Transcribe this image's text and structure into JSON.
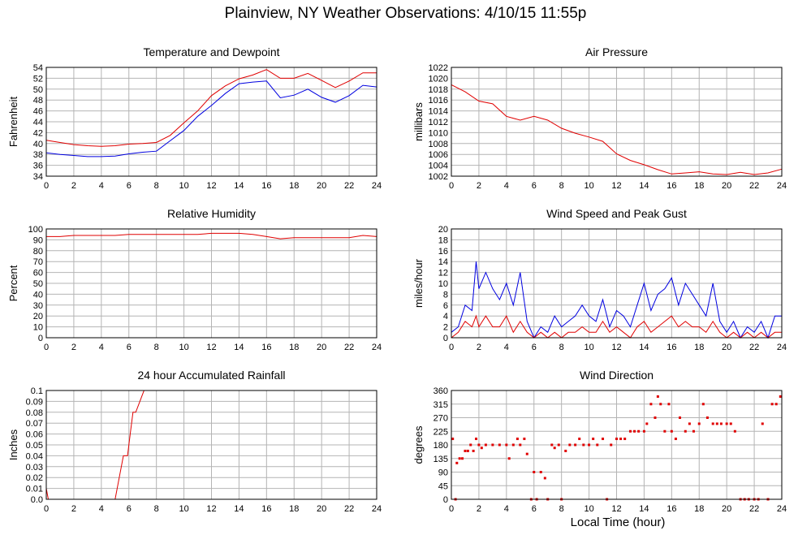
{
  "title": "Plainview, NY Weather Observations: 4/10/15 11:55p",
  "x_axis_label": "Local Time (hour)",
  "colors": {
    "red": "#e00000",
    "blue": "#0000e0",
    "grid": "#b4b4b4",
    "axis": "#000000"
  },
  "chart_data": [
    {
      "id": "temp",
      "type": "line",
      "title": "Temperature and Dewpoint",
      "ylabel": "Fahrenheit",
      "xlim": [
        0,
        24
      ],
      "ylim": [
        34,
        54
      ],
      "yticks": [
        34,
        36,
        38,
        40,
        42,
        44,
        46,
        48,
        50,
        52,
        54
      ],
      "xticks": [
        0,
        2,
        4,
        6,
        8,
        10,
        12,
        14,
        16,
        18,
        20,
        22,
        24
      ],
      "grid": true,
      "series": [
        {
          "color": "red",
          "x": [
            0,
            1,
            2,
            3,
            4,
            5,
            6,
            7,
            8,
            9,
            10,
            11,
            12,
            13,
            14,
            15,
            16,
            17,
            18,
            19,
            20,
            21,
            22,
            23,
            24
          ],
          "y": [
            40.6,
            40.2,
            39.8,
            39.6,
            39.5,
            39.6,
            39.9,
            40.0,
            40.2,
            41.5,
            43.8,
            46.0,
            48.8,
            50.6,
            51.9,
            52.6,
            53.6,
            52.0,
            52.0,
            52.9,
            51.6,
            50.3,
            51.5,
            53.0,
            53.0
          ]
        },
        {
          "color": "blue",
          "x": [
            0,
            1,
            2,
            3,
            4,
            5,
            6,
            7,
            8,
            9,
            10,
            11,
            12,
            13,
            14,
            15,
            16,
            17,
            18,
            19,
            20,
            21,
            22,
            23,
            24
          ],
          "y": [
            38.3,
            38.0,
            37.8,
            37.6,
            37.6,
            37.7,
            38.1,
            38.4,
            38.6,
            40.5,
            42.4,
            45.0,
            47.0,
            49.2,
            51.0,
            51.3,
            51.5,
            48.4,
            48.9,
            50.0,
            48.5,
            47.6,
            48.8,
            50.7,
            50.4
          ]
        }
      ]
    },
    {
      "id": "pressure",
      "type": "line",
      "title": "Air Pressure",
      "ylabel": "millibars",
      "xlim": [
        0,
        24
      ],
      "ylim": [
        1002,
        1022
      ],
      "yticks": [
        1002,
        1004,
        1006,
        1008,
        1010,
        1012,
        1014,
        1016,
        1018,
        1020,
        1022
      ],
      "xticks": [
        0,
        2,
        4,
        6,
        8,
        10,
        12,
        14,
        16,
        18,
        20,
        22,
        24
      ],
      "grid": true,
      "series": [
        {
          "color": "red",
          "x": [
            0,
            1,
            2,
            3,
            4,
            5,
            6,
            7,
            8,
            9,
            10,
            11,
            12,
            13,
            14,
            15,
            16,
            17,
            18,
            19,
            20,
            21,
            22,
            23,
            24
          ],
          "y": [
            1018.8,
            1017.5,
            1015.8,
            1015.3,
            1013.0,
            1012.3,
            1013.0,
            1012.3,
            1010.8,
            1009.9,
            1009.2,
            1008.4,
            1006.1,
            1004.9,
            1004.1,
            1003.2,
            1002.4,
            1002.6,
            1002.8,
            1002.4,
            1002.3,
            1002.7,
            1002.3,
            1002.6,
            1003.3
          ]
        }
      ]
    },
    {
      "id": "humidity",
      "type": "line",
      "title": "Relative Humidity",
      "ylabel": "Percent",
      "xlim": [
        0,
        24
      ],
      "ylim": [
        0,
        100
      ],
      "yticks": [
        0,
        10,
        20,
        30,
        40,
        50,
        60,
        70,
        80,
        90,
        100
      ],
      "xticks": [
        0,
        2,
        4,
        6,
        8,
        10,
        12,
        14,
        16,
        18,
        20,
        22,
        24
      ],
      "grid": true,
      "series": [
        {
          "color": "red",
          "x": [
            0,
            1,
            2,
            3,
            4,
            5,
            6,
            7,
            8,
            9,
            10,
            11,
            12,
            13,
            14,
            15,
            16,
            17,
            18,
            19,
            20,
            21,
            22,
            23,
            24
          ],
          "y": [
            93,
            93,
            94,
            94,
            94,
            94,
            95,
            95,
            95,
            95,
            95,
            95,
            96,
            96,
            96,
            95,
            93,
            91,
            92,
            92,
            92,
            92,
            92,
            94,
            93
          ]
        }
      ]
    },
    {
      "id": "wind",
      "type": "line",
      "title": "Wind Speed and Peak Gust",
      "ylabel": "miles/hour",
      "xlim": [
        0,
        24
      ],
      "ylim": [
        0,
        20
      ],
      "yticks": [
        0,
        2,
        4,
        6,
        8,
        10,
        12,
        14,
        16,
        18,
        20
      ],
      "xticks": [
        0,
        2,
        4,
        6,
        8,
        10,
        12,
        14,
        16,
        18,
        20,
        22,
        24
      ],
      "grid": true,
      "series": [
        {
          "color": "blue",
          "x": [
            0,
            0.5,
            1,
            1.5,
            1.8,
            2,
            2.5,
            3,
            3.5,
            4,
            4.5,
            5,
            5.5,
            6,
            6.5,
            7,
            7.5,
            8,
            8.5,
            9,
            9.5,
            10,
            10.5,
            11,
            11.5,
            12,
            12.5,
            13,
            13.5,
            14,
            14.5,
            15,
            15.5,
            16,
            16.5,
            17,
            17.5,
            18,
            18.5,
            19,
            19.5,
            20,
            20.5,
            21,
            21.5,
            22,
            22.5,
            23,
            23.5,
            24
          ],
          "y": [
            1,
            2,
            6,
            5,
            14,
            9,
            12,
            9,
            7,
            10,
            6,
            12,
            3,
            0,
            2,
            1,
            4,
            2,
            3,
            4,
            6,
            4,
            3,
            7,
            2,
            5,
            4,
            2,
            6,
            10,
            5,
            8,
            9,
            11,
            6,
            10,
            8,
            6,
            4,
            10,
            3,
            1,
            3,
            0,
            2,
            1,
            3,
            0,
            4,
            4
          ]
        },
        {
          "color": "red",
          "x": [
            0,
            0.5,
            1,
            1.5,
            1.8,
            2,
            2.5,
            3,
            3.5,
            4,
            4.5,
            5,
            5.5,
            6,
            6.5,
            7,
            7.5,
            8,
            8.5,
            9,
            9.5,
            10,
            10.5,
            11,
            11.5,
            12,
            12.5,
            13,
            13.5,
            14,
            14.5,
            15,
            15.5,
            16,
            16.5,
            17,
            17.5,
            18,
            18.5,
            19,
            19.5,
            20,
            20.5,
            21,
            21.5,
            22,
            22.5,
            23,
            23.5,
            24
          ],
          "y": [
            0,
            1,
            3,
            2,
            4,
            2,
            4,
            2,
            2,
            4,
            1,
            3,
            1,
            0,
            1,
            0,
            1,
            0,
            1,
            1,
            2,
            1,
            1,
            3,
            1,
            2,
            1,
            0,
            2,
            3,
            1,
            2,
            3,
            4,
            2,
            3,
            2,
            2,
            1,
            3,
            1,
            0,
            1,
            0,
            1,
            0,
            1,
            0,
            1,
            1
          ]
        }
      ]
    },
    {
      "id": "rain",
      "type": "line",
      "title": "24 hour Accumulated Rainfall",
      "ylabel": "Inches",
      "xlim": [
        0,
        24
      ],
      "ylim": [
        0,
        0.1
      ],
      "yticks": [
        0.0,
        0.01,
        0.02,
        0.03,
        0.04,
        0.05,
        0.06,
        0.07,
        0.08,
        0.09,
        0.1
      ],
      "ytick_labels": [
        "0.0",
        "0.01",
        "0.02",
        "0.03",
        "0.04",
        "0.05",
        "0.06",
        "0.07",
        "0.08",
        "0.09",
        "0.1"
      ],
      "xticks": [
        0,
        2,
        4,
        6,
        8,
        10,
        12,
        14,
        16,
        18,
        20,
        22,
        24
      ],
      "grid": true,
      "series": [
        {
          "color": "red",
          "x": [
            0,
            0.15,
            5,
            5.3,
            5.6,
            5.9,
            6.1,
            6.3,
            6.5,
            6.8,
            7.1,
            7.2,
            24
          ],
          "y": [
            0.01,
            0,
            0,
            0.02,
            0.04,
            0.04,
            0.06,
            0.08,
            0.08,
            0.09,
            0.1,
            0.1,
            0.1
          ]
        }
      ]
    },
    {
      "id": "direction",
      "type": "scatter",
      "title": "Wind Direction",
      "ylabel": "degrees",
      "xlim": [
        0,
        24
      ],
      "ylim": [
        0,
        360
      ],
      "yticks": [
        0,
        45,
        90,
        135,
        180,
        225,
        270,
        315,
        360
      ],
      "xticks": [
        0,
        2,
        4,
        6,
        8,
        10,
        12,
        14,
        16,
        18,
        20,
        22,
        24
      ],
      "grid": true,
      "series": [
        {
          "color": "red",
          "x": [
            0.1,
            0.3,
            0.4,
            0.6,
            0.8,
            1.0,
            1.2,
            1.4,
            1.6,
            1.8,
            2.0,
            2.2,
            2.5,
            3.0,
            3.5,
            4.0,
            4.2,
            4.5,
            4.8,
            5.0,
            5.3,
            5.5,
            5.8,
            6.0,
            6.2,
            6.5,
            6.8,
            7.0,
            7.3,
            7.5,
            7.8,
            8.0,
            8.3,
            8.6,
            9.0,
            9.3,
            9.6,
            10.0,
            10.3,
            10.6,
            11.0,
            11.3,
            11.6,
            12.0,
            12.3,
            12.6,
            13.0,
            13.3,
            13.6,
            14.0,
            14.2,
            14.5,
            14.8,
            15.0,
            15.2,
            15.5,
            15.8,
            16.0,
            16.3,
            16.6,
            17.0,
            17.3,
            17.6,
            18.0,
            18.3,
            18.6,
            19.0,
            19.3,
            19.6,
            20.0,
            20.3,
            20.6,
            21.0,
            21.3,
            21.6,
            22.0,
            22.3,
            22.6,
            23.0,
            23.3,
            23.6,
            23.9
          ],
          "y": [
            200,
            0,
            120,
            135,
            135,
            160,
            160,
            180,
            160,
            200,
            180,
            170,
            180,
            180,
            180,
            180,
            135,
            180,
            200,
            180,
            200,
            150,
            0,
            90,
            0,
            90,
            70,
            0,
            180,
            170,
            180,
            0,
            160,
            180,
            180,
            200,
            180,
            180,
            200,
            180,
            200,
            0,
            180,
            200,
            200,
            200,
            225,
            225,
            225,
            225,
            250,
            315,
            270,
            340,
            315,
            225,
            315,
            225,
            200,
            270,
            225,
            250,
            225,
            250,
            315,
            270,
            250,
            250,
            250,
            250,
            250,
            225,
            0,
            0,
            0,
            0,
            0,
            250,
            0,
            315,
            315,
            340
          ]
        }
      ]
    }
  ]
}
